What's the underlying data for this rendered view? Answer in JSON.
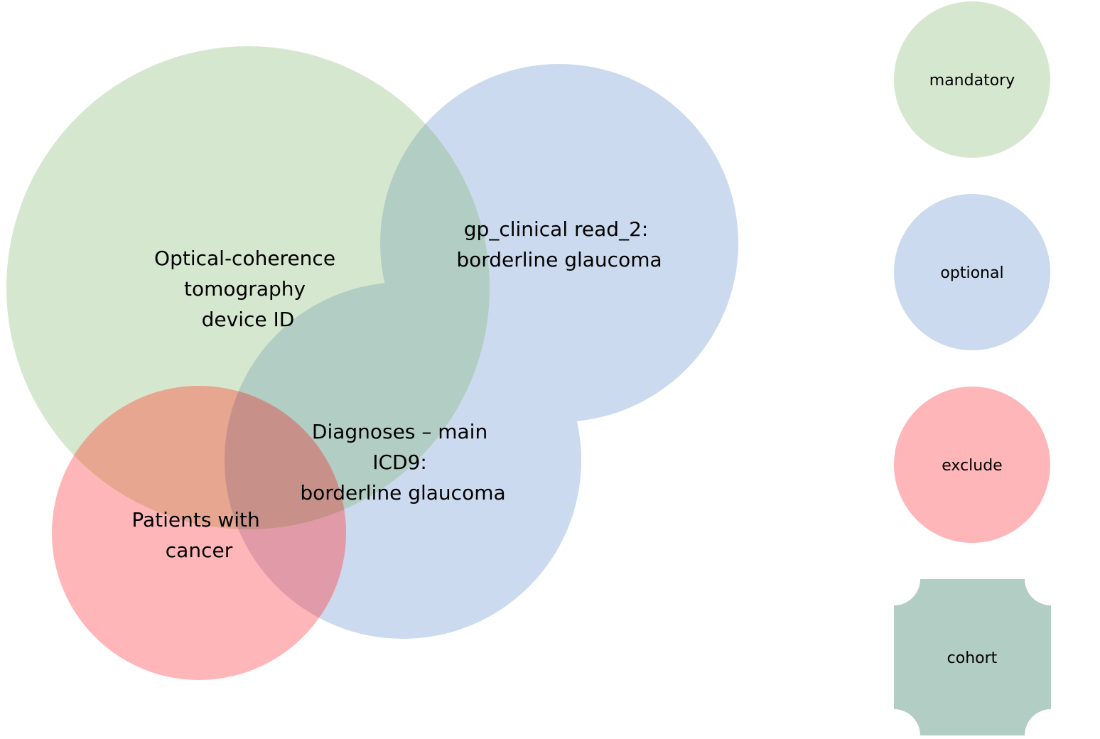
{
  "diagram": {
    "sets": [
      {
        "category": "mandatory",
        "label_lines": [
          "Optical-coherence",
          "tomography",
          "device ID"
        ]
      },
      {
        "category": "optional",
        "label_lines": [
          "gp_clinical read_2:",
          "borderline glaucoma"
        ]
      },
      {
        "category": "optional",
        "label_lines": [
          "Diagnoses – main",
          "ICD9:",
          "borderline glaucoma"
        ]
      },
      {
        "category": "exclude",
        "label_lines": [
          "Patients with",
          "cancer"
        ]
      }
    ],
    "cohort_region": "intersection of the mandatory set with the union of the optional sets"
  },
  "legend": {
    "items": [
      {
        "key": "mandatory",
        "label": "mandatory",
        "shape": "circle",
        "color": "#d6e7cf"
      },
      {
        "key": "optional",
        "label": "optional",
        "shape": "circle",
        "color": "#cbdaee"
      },
      {
        "key": "exclude",
        "label": "exclude",
        "shape": "circle",
        "color": "#ffb6b8"
      },
      {
        "key": "cohort",
        "label": "cohort",
        "shape": "notched-square",
        "color": "#b2cdc3"
      }
    ]
  },
  "colors": {
    "mandatory": "#d6e7cf",
    "optional": "#cbdaee",
    "exclude": "#ffb6b8",
    "cohort": "#b2cdc3"
  }
}
